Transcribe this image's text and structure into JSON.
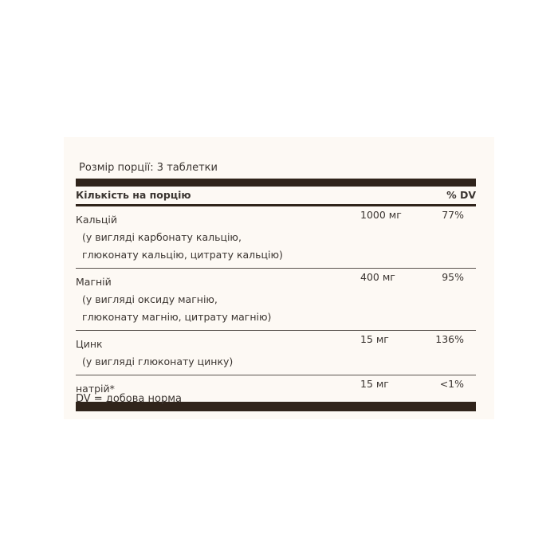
{
  "serving_size": "Розмір порції: 3 таблетки",
  "header": {
    "amount_label": "Кількість на порцію",
    "dv_label": "% DV"
  },
  "rows": [
    {
      "name": "Кальцій",
      "sub": [
        "(у вигляді карбонату кальцію,",
        "глюконату кальцію, цитрату кальцію)"
      ],
      "amount": "1000 мг",
      "dv": "77%"
    },
    {
      "name": "Магній",
      "sub": [
        "(у вигляді оксиду магнію,",
        "глюконату магнію, цитрату магнію)"
      ],
      "amount": "400 мг",
      "dv": "95%"
    },
    {
      "name": "Цинк",
      "sub": [
        "(у вигляді глюконату цинку)"
      ],
      "amount": "15 мг",
      "dv": "136%"
    },
    {
      "name": "натрій*",
      "sub": [],
      "amount": "15 мг",
      "dv": "<1%"
    }
  ],
  "footer": "DV = добова норма"
}
